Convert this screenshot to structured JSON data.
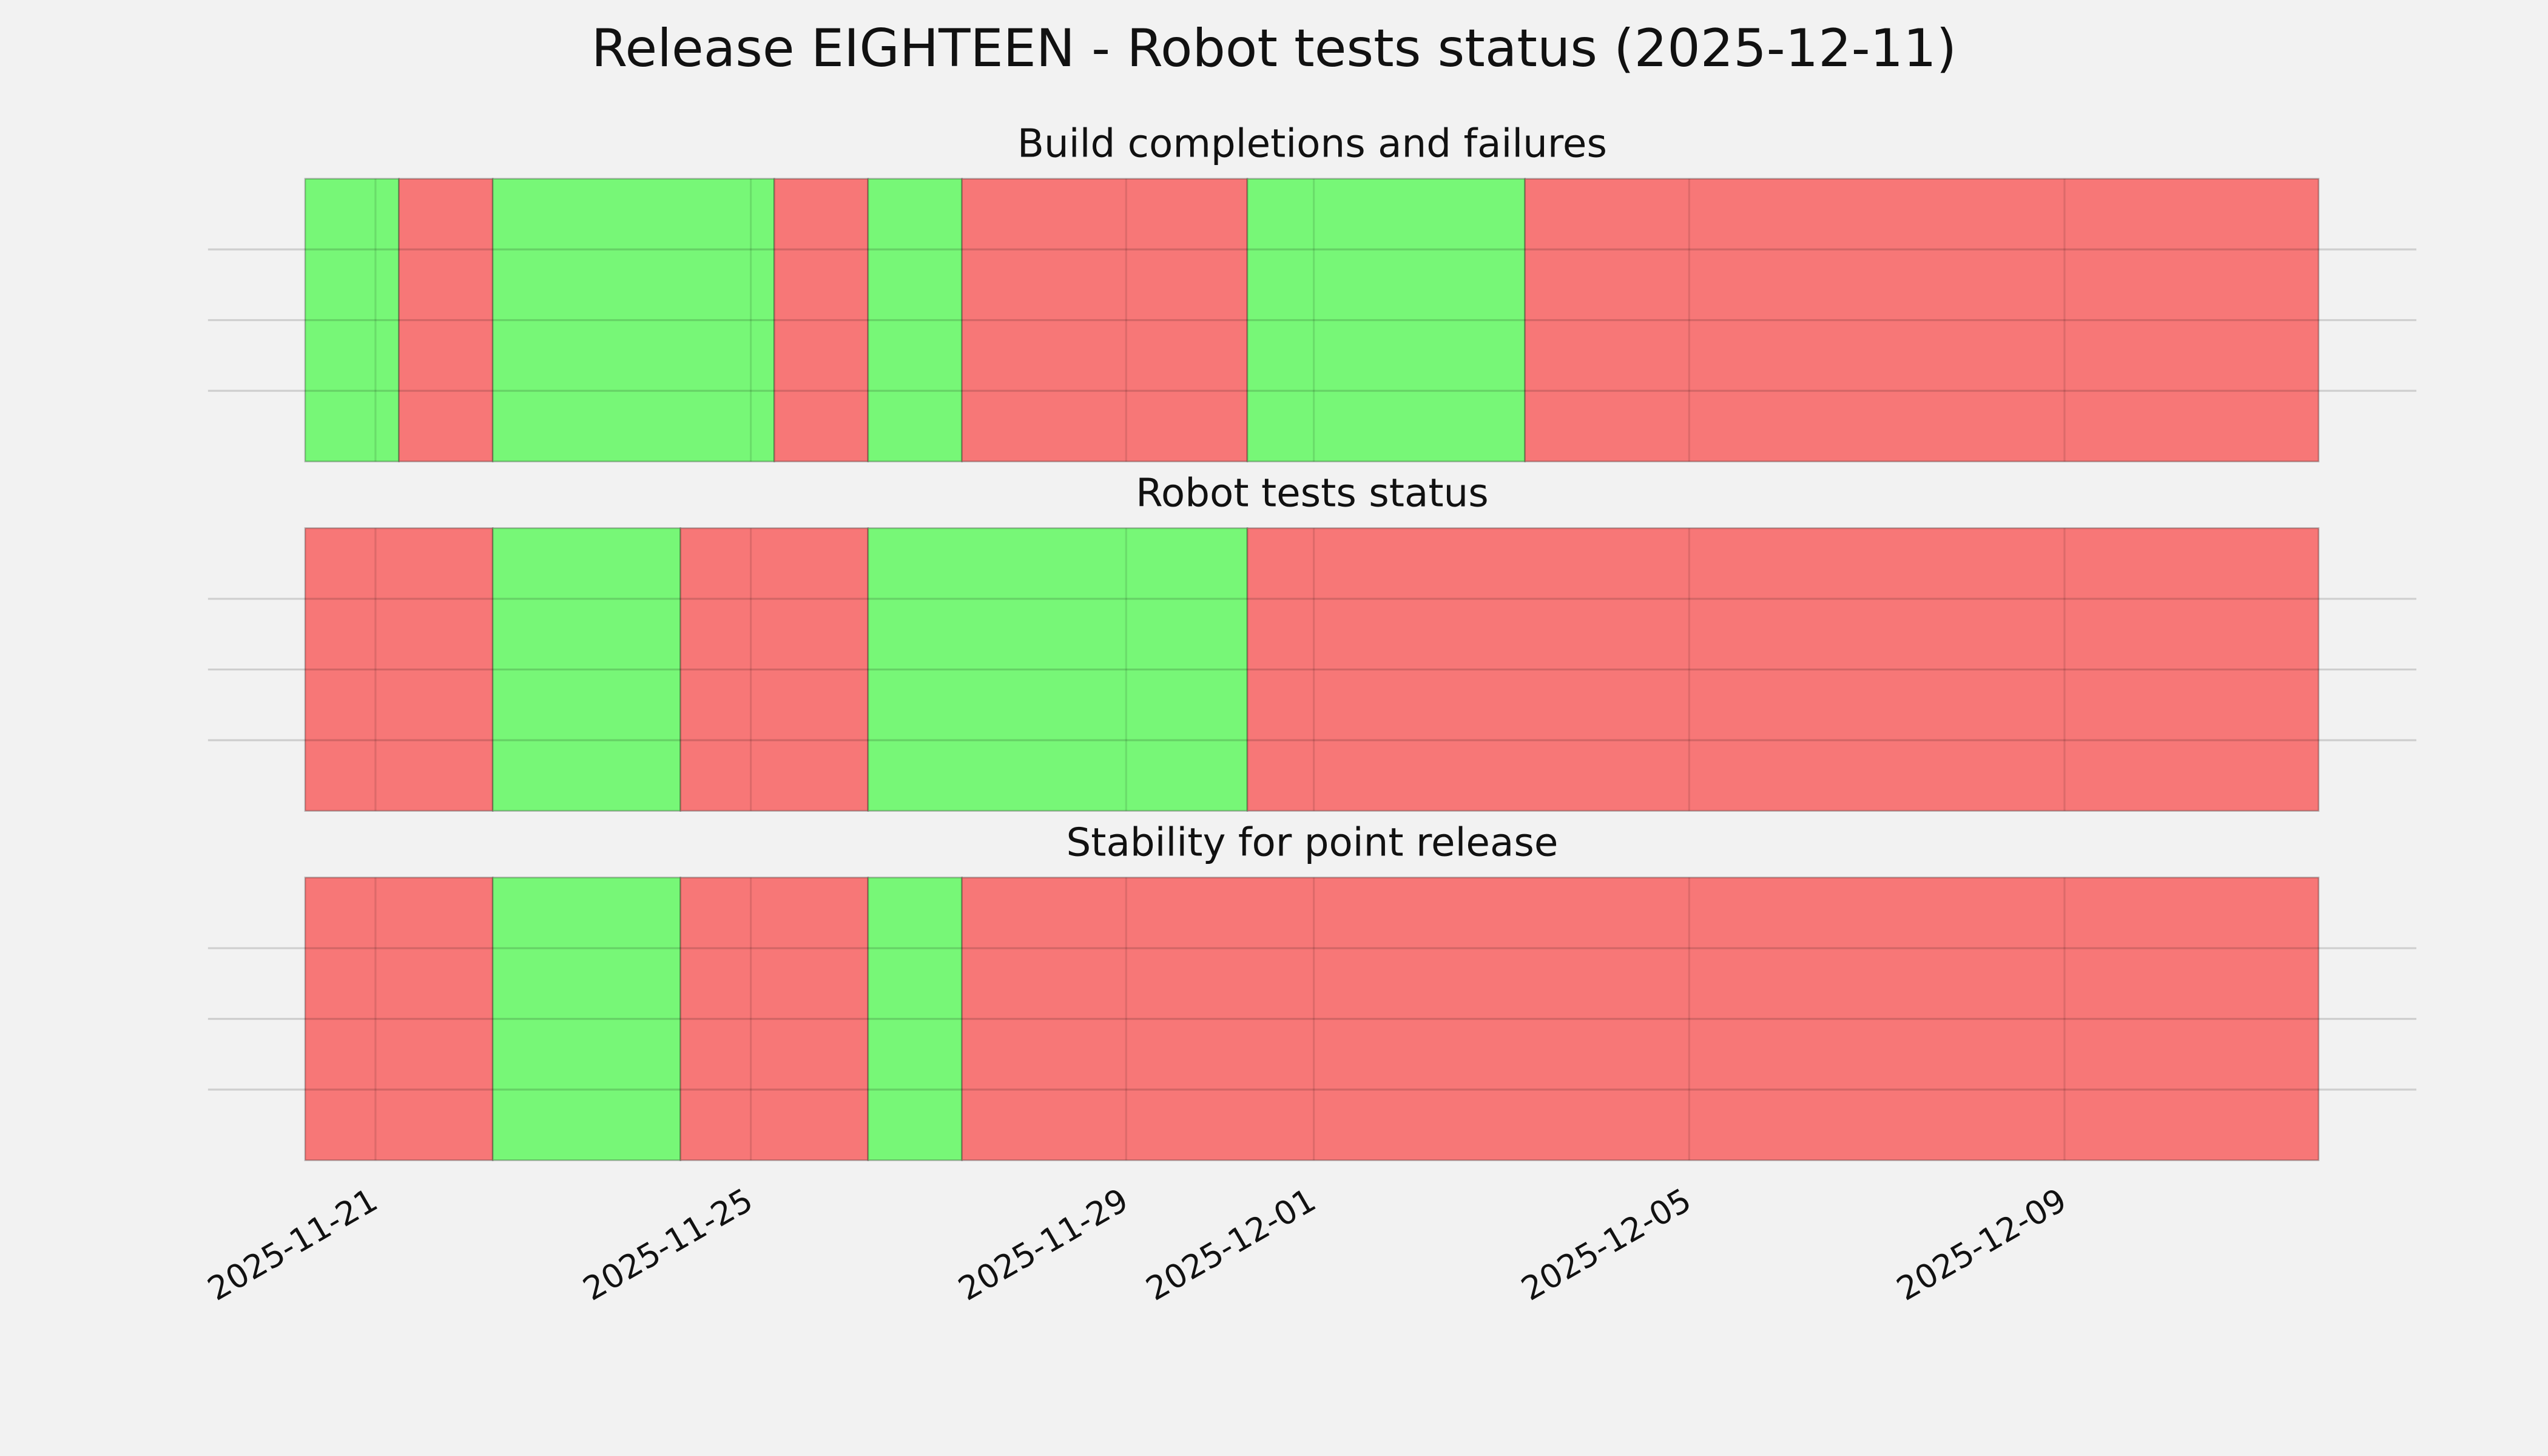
{
  "title": "Release EIGHTEEN - Robot tests status (2025-12-11)",
  "chart_data": [
    {
      "type": "timeline",
      "title": "Build completions and failures",
      "xlim": [
        "2025-11-19T05:10",
        "2025-12-12T18:00"
      ],
      "xticks": [
        "2025-11-21",
        "2025-11-25",
        "2025-11-29",
        "2025-12-01",
        "2025-12-05",
        "2025-12-09"
      ],
      "ylim": [
        0,
        1
      ],
      "yticks": [
        0.25,
        0.5,
        0.75
      ],
      "grid": true,
      "spans": [
        {
          "start": "2025-11-20T06:00",
          "end": "2025-11-21T06:00",
          "color": "#77f777"
        },
        {
          "start": "2025-11-21T06:00",
          "end": "2025-11-22T06:00",
          "color": "#f77777"
        },
        {
          "start": "2025-11-22T06:00",
          "end": "2025-11-25T06:00",
          "color": "#77f777"
        },
        {
          "start": "2025-11-25T06:00",
          "end": "2025-11-26T06:00",
          "color": "#f77777"
        },
        {
          "start": "2025-11-26T06:00",
          "end": "2025-11-27T06:00",
          "color": "#77f777"
        },
        {
          "start": "2025-11-27T06:00",
          "end": "2025-11-30T07:00",
          "color": "#f77777"
        },
        {
          "start": "2025-11-30T07:00",
          "end": "2025-12-03T06:00",
          "color": "#77f777"
        },
        {
          "start": "2025-12-03T06:00",
          "end": "2025-12-11T17:00",
          "color": "#f77777"
        }
      ]
    },
    {
      "type": "timeline",
      "title": "Robot tests status",
      "xlim": [
        "2025-11-19T05:10",
        "2025-12-12T18:00"
      ],
      "xticks": [
        "2025-11-21",
        "2025-11-25",
        "2025-11-29",
        "2025-12-01",
        "2025-12-05",
        "2025-12-09"
      ],
      "ylim": [
        0,
        1
      ],
      "yticks": [
        0.25,
        0.5,
        0.75
      ],
      "grid": true,
      "spans": [
        {
          "start": "2025-11-20T06:00",
          "end": "2025-11-22T06:00",
          "color": "#f77777"
        },
        {
          "start": "2025-11-22T06:00",
          "end": "2025-11-24T06:00",
          "color": "#77f777"
        },
        {
          "start": "2025-11-24T06:00",
          "end": "2025-11-26T06:00",
          "color": "#f77777"
        },
        {
          "start": "2025-11-26T06:00",
          "end": "2025-11-30T07:00",
          "color": "#77f777"
        },
        {
          "start": "2025-11-30T07:00",
          "end": "2025-12-11T17:00",
          "color": "#f77777"
        }
      ]
    },
    {
      "type": "timeline",
      "title": "Stability for point release",
      "xlim": [
        "2025-11-19T05:10",
        "2025-12-12T18:00"
      ],
      "xticks": [
        "2025-11-21",
        "2025-11-25",
        "2025-11-29",
        "2025-12-01",
        "2025-12-05",
        "2025-12-09"
      ],
      "show_xtick_labels": true,
      "ylim": [
        0,
        1
      ],
      "yticks": [
        0.25,
        0.5,
        0.75
      ],
      "grid": true,
      "spans": [
        {
          "start": "2025-11-20T06:00",
          "end": "2025-11-22T06:00",
          "color": "#f77777"
        },
        {
          "start": "2025-11-22T06:00",
          "end": "2025-11-24T06:00",
          "color": "#77f777"
        },
        {
          "start": "2025-11-24T06:00",
          "end": "2025-11-26T06:00",
          "color": "#f77777"
        },
        {
          "start": "2025-11-26T06:00",
          "end": "2025-11-27T06:00",
          "color": "#77f777"
        },
        {
          "start": "2025-11-27T06:00",
          "end": "2025-12-11T17:00",
          "color": "#f77777"
        }
      ]
    }
  ]
}
